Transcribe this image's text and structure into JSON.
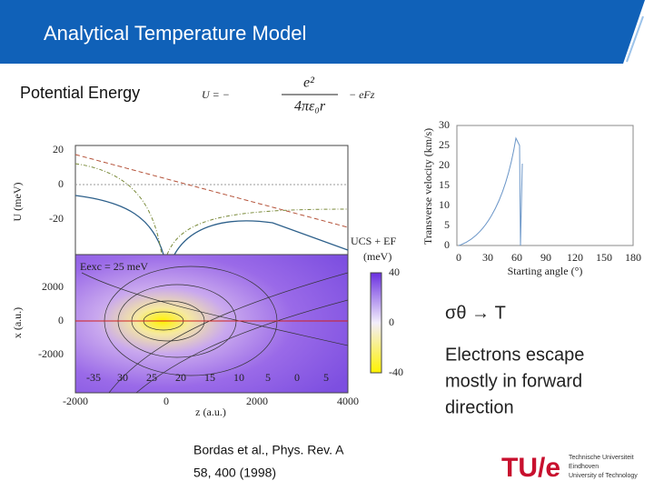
{
  "header": {
    "title": "Analytical Temperature Model"
  },
  "potential_label": "Potential Energy",
  "equation": {
    "lhs": "U = −",
    "numerator": "e²",
    "denominator": "4πε₀r",
    "tail": "− eFz"
  },
  "left_figure": {
    "top_y_label": "U (meV)",
    "top_y_ticks": [
      20,
      0,
      -20
    ],
    "bottom_y_label": "x (a.u.)",
    "bottom_y_ticks": [
      2000,
      0,
      -2000
    ],
    "x_label": "z (a.u.)",
    "x_ticks": [
      -2000,
      0,
      2000,
      4000
    ],
    "energy_label": "Eexc = 25 meV",
    "colorbar_label": [
      "UCS + EF",
      "(meV)"
    ],
    "colorbar_ticks": [
      40,
      0,
      -40
    ],
    "contour_labels": [
      -35,
      30,
      25,
      20,
      15,
      10,
      5,
      0,
      5
    ]
  },
  "right_figure": {
    "y_label": "Transverse velocity (km/s)",
    "y_ticks": [
      30,
      25,
      20,
      15,
      10,
      5,
      0
    ],
    "x_label": "Starting angle (°)",
    "x_ticks": [
      0,
      30,
      60,
      90,
      120,
      150,
      180
    ]
  },
  "notes": {
    "sigma": "σθ → T",
    "escape": [
      "Electrons escape",
      "mostly in forward",
      "direction"
    ]
  },
  "reference": [
    "Bordas et al., Phys. Rev. A",
    "58, 400 (1998)"
  ],
  "logo": {
    "mark": "TU/e",
    "lines": [
      "Technische Universiteit",
      "Eindhoven",
      "University of Technology"
    ]
  }
}
